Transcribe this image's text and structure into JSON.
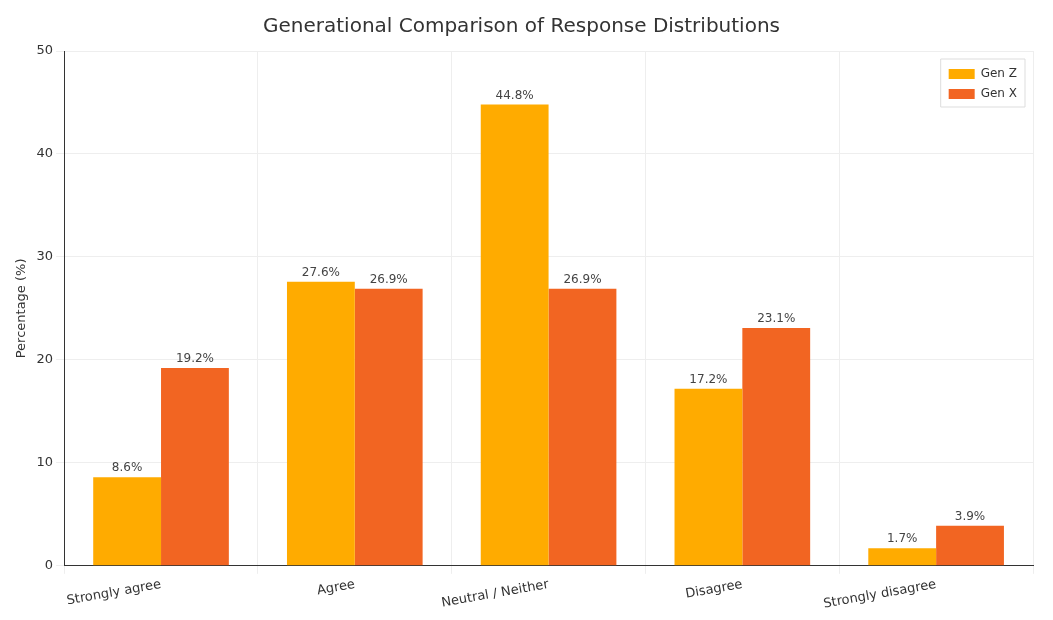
{
  "chart_data": {
    "type": "bar",
    "title": "Generational Comparison of Response Distributions",
    "ylabel": "Percentage (%)",
    "categories": [
      "Strongly agree",
      "Agree",
      "Neutral / Neither",
      "Disagree",
      "Strongly disagree"
    ],
    "series": [
      {
        "name": "Gen Z",
        "color": "#ffab00",
        "values": [
          8.6,
          27.6,
          44.8,
          17.2,
          1.7
        ],
        "value_labels": [
          "8.6%",
          "27.6%",
          "44.8%",
          "17.2%",
          "1.7%"
        ]
      },
      {
        "name": "Gen X",
        "color": "#f26522",
        "values": [
          19.2,
          26.9,
          26.9,
          23.1,
          3.9
        ],
        "value_labels": [
          "19.2%",
          "26.9%",
          "26.9%",
          "23.1%",
          "3.9%"
        ]
      }
    ],
    "ylim": [
      0,
      50
    ],
    "yticks": [
      0,
      10,
      20,
      30,
      40,
      50
    ],
    "grid": true,
    "legend": "top right"
  }
}
